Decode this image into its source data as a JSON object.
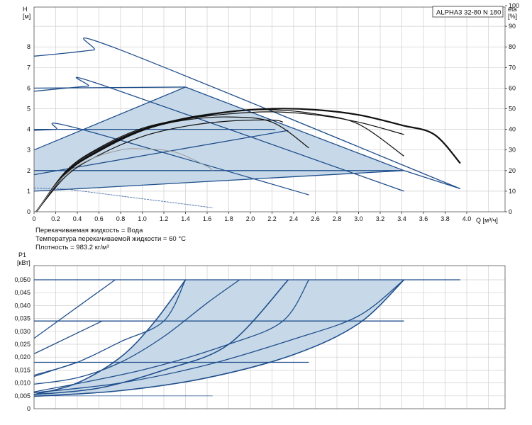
{
  "model_label": "ALPHA3 32-80 N 180",
  "notes": {
    "fluid": "Перекачиваемая жидкость = Вода",
    "temperature": "Температура перекачиваемой жидкости = 60 °C",
    "density": "Плотность = 983.2 кг/м³"
  },
  "chart_data": [
    {
      "type": "line",
      "title": "",
      "ylabel": "H",
      "yunit": "[м]",
      "y2label": "eta",
      "y2unit": "[%]",
      "xlabel": "Q [м³/ч]",
      "xlim": [
        0,
        4.4
      ],
      "ylim": [
        0,
        10
      ],
      "y2lim": [
        0,
        100
      ],
      "x_ticks": [
        "0",
        "0.2",
        "0.4",
        "0.6",
        "0.8",
        "1.0",
        "1.2",
        "1.4",
        "1.6",
        "1.8",
        "2.0",
        "2.2",
        "2.4",
        "2.6",
        "2.8",
        "3.0",
        "3.2",
        "3.4",
        "3.6",
        "3.8",
        "4.0"
      ],
      "y_ticks": [
        "0",
        "1",
        "2",
        "3",
        "4",
        "5",
        "6",
        "7",
        "8"
      ],
      "y2_ticks": [
        "0",
        "10",
        "20",
        "30",
        "40",
        "50",
        "60",
        "70",
        "80",
        "90",
        "100"
      ],
      "grid": true,
      "operating_area": [
        [
          0,
          1
        ],
        [
          3.42,
          2.0
        ],
        [
          1.4,
          6.05
        ],
        [
          0,
          3.0
        ]
      ],
      "series": [
        {
          "style": "blue",
          "points": [
            [
              0,
              7.55
            ],
            [
              0.3,
              7.7
            ],
            [
              0.55,
              7.85
            ],
            [
              0.75,
              7.95
            ],
            [
              3.94,
              1.12
            ]
          ]
        },
        {
          "style": "blue",
          "points": [
            [
              0,
              5.85
            ],
            [
              0.3,
              6.0
            ],
            [
              0.5,
              6.1
            ],
            [
              0.63,
              6.15
            ],
            [
              3.42,
              1.0
            ]
          ]
        },
        {
          "style": "blue",
          "points": [
            [
              0,
              3.95
            ],
            [
              0.2,
              4.0
            ],
            [
              0.38,
              4.08
            ],
            [
              2.54,
              0.82
            ]
          ]
        },
        {
          "style": "blue",
          "points": [
            [
              0,
              6.0
            ],
            [
              1.4,
              6.05
            ],
            [
              3.42,
              2.0
            ]
          ]
        },
        {
          "style": "blue",
          "points": [
            [
              0,
              4.0
            ],
            [
              2.23,
              4.0
            ]
          ]
        },
        {
          "style": "blue",
          "points": [
            [
              0,
              2.0
            ],
            [
              3.42,
              2.0
            ]
          ]
        },
        {
          "style": "blue",
          "points": [
            [
              0,
              1.0
            ],
            [
              3.42,
              2.0
            ]
          ]
        },
        {
          "style": "blue",
          "points": [
            [
              0,
              1.8
            ],
            [
              2.35,
              3.95
            ]
          ]
        },
        {
          "style": "blue",
          "points": [
            [
              0,
              3.0
            ],
            [
              1.4,
              6.05
            ]
          ]
        },
        {
          "style": "blue",
          "points": [
            [
              3.42,
              2.0
            ],
            [
              3.94,
              1.12
            ]
          ]
        },
        {
          "style": "thin",
          "points": [
            [
              0,
              1.15
            ],
            [
              0.3,
              1.1
            ],
            [
              1.65,
              0.2
            ]
          ]
        },
        {
          "style": "effbold",
          "points": [
            [
              0.02,
              0.0
            ],
            [
              0.3,
              1.9
            ],
            [
              0.6,
              2.95
            ],
            [
              1.0,
              3.95
            ],
            [
              1.4,
              4.5
            ],
            [
              1.8,
              4.85
            ],
            [
              2.2,
              5.0
            ],
            [
              2.6,
              4.95
            ],
            [
              3.0,
              4.7
            ],
            [
              3.4,
              4.2
            ],
            [
              3.7,
              3.75
            ],
            [
              3.94,
              2.35
            ]
          ]
        },
        {
          "style": "eff",
          "points": [
            [
              0.02,
              0.0
            ],
            [
              0.3,
              1.95
            ],
            [
              0.6,
              3.0
            ],
            [
              1.0,
              4.0
            ],
            [
              1.4,
              4.55
            ],
            [
              1.8,
              4.85
            ],
            [
              2.2,
              4.95
            ],
            [
              2.6,
              4.75
            ],
            [
              3.0,
              4.25
            ],
            [
              3.42,
              2.7
            ]
          ]
        },
        {
          "style": "eff",
          "points": [
            [
              0.02,
              0.0
            ],
            [
              0.3,
              2.0
            ],
            [
              0.6,
              3.05
            ],
            [
              1.0,
              4.0
            ],
            [
              1.4,
              4.45
            ],
            [
              1.8,
              4.6
            ],
            [
              2.2,
              4.35
            ],
            [
              2.54,
              3.1
            ]
          ]
        },
        {
          "style": "eff",
          "points": [
            [
              0.02,
              0.0
            ],
            [
              0.3,
              2.0
            ],
            [
              0.6,
              3.1
            ],
            [
              1.0,
              4.05
            ],
            [
              1.4,
              4.5
            ],
            [
              1.8,
              4.75
            ],
            [
              2.2,
              4.85
            ],
            [
              2.6,
              4.7
            ],
            [
              3.0,
              4.35
            ],
            [
              3.42,
              3.75
            ]
          ]
        },
        {
          "style": "eff",
          "points": [
            [
              0.02,
              0.0
            ],
            [
              0.3,
              1.75
            ],
            [
              0.6,
              2.75
            ],
            [
              1.0,
              3.65
            ],
            [
              1.4,
              4.15
            ],
            [
              1.8,
              4.4
            ],
            [
              2.2,
              4.45
            ],
            [
              2.3,
              4.35
            ]
          ]
        },
        {
          "style": "effgray",
          "points": [
            [
              0.02,
              0.0
            ],
            [
              0.25,
              1.6
            ],
            [
              0.5,
              2.5
            ],
            [
              0.8,
              3.0
            ],
            [
              1.0,
              3.05
            ],
            [
              1.3,
              2.9
            ],
            [
              1.6,
              2.2
            ],
            [
              1.65,
              2.0
            ]
          ]
        }
      ]
    },
    {
      "type": "line",
      "title": "",
      "ylabel": "P1",
      "yunit": "[кВт]",
      "xlim": [
        0,
        4.4
      ],
      "ylim": [
        0,
        0.055
      ],
      "y_ticks": [
        "0",
        "0,005",
        "0,010",
        "0,015",
        "0,020",
        "0,025",
        "0,030",
        "0,035",
        "0,040",
        "0,045",
        "0,050"
      ],
      "grid": true,
      "operating_area": [
        [
          0,
          0.0048
        ],
        [
          3.42,
          0.05
        ],
        [
          1.4,
          0.05
        ],
        [
          0,
          0.0133
        ]
      ],
      "series": [
        {
          "style": "blue",
          "points": [
            [
              0,
              0.05
            ],
            [
              3.94,
              0.05
            ]
          ]
        },
        {
          "style": "blue",
          "points": [
            [
              0,
              0.034
            ],
            [
              3.42,
              0.034
            ]
          ]
        },
        {
          "style": "blue",
          "points": [
            [
              0,
              0.018
            ],
            [
              2.54,
              0.018
            ]
          ]
        },
        {
          "style": "thin",
          "points": [
            [
              0,
              0.005
            ],
            [
              1.65,
              0.005
            ]
          ]
        },
        {
          "style": "blue",
          "points": [
            [
              0,
              0.0273
            ],
            [
              0.75,
              0.05
            ]
          ]
        },
        {
          "style": "blue",
          "points": [
            [
              0,
              0.0213
            ],
            [
              0.63,
              0.034
            ]
          ]
        },
        {
          "style": "blue",
          "points": [
            [
              0,
              0.0125
            ],
            [
              0.4,
              0.018
            ]
          ]
        },
        {
          "style": "blue2",
          "points": [
            [
              0,
              0.0055
            ],
            [
              0.4,
              0.01
            ],
            [
              0.8,
              0.02
            ],
            [
              1.1,
              0.033
            ],
            [
              1.4,
              0.05
            ]
          ]
        },
        {
          "style": "blue2",
          "points": [
            [
              0,
              0.0055
            ],
            [
              0.6,
              0.008
            ],
            [
              1.2,
              0.015
            ],
            [
              1.8,
              0.025
            ],
            [
              2.35,
              0.05
            ]
          ]
        },
        {
          "style": "blue2",
          "points": [
            [
              0,
              0.0048
            ],
            [
              0.8,
              0.007
            ],
            [
              1.6,
              0.012
            ],
            [
              2.4,
              0.021
            ],
            [
              3.0,
              0.033
            ],
            [
              3.42,
              0.05
            ]
          ]
        },
        {
          "style": "blue",
          "points": [
            [
              0,
              0.0095
            ],
            [
              0.4,
              0.012
            ],
            [
              0.8,
              0.018
            ],
            [
              1.2,
              0.028
            ],
            [
              1.6,
              0.041
            ],
            [
              1.9,
              0.05
            ]
          ]
        },
        {
          "style": "blue",
          "points": [
            [
              0,
              0.0062
            ],
            [
              0.8,
              0.01
            ],
            [
              1.6,
              0.017
            ],
            [
              2.4,
              0.027
            ],
            [
              3.0,
              0.036
            ],
            [
              3.42,
              0.05
            ]
          ]
        },
        {
          "style": "blue",
          "points": [
            [
              0,
              0.013
            ],
            [
              0.4,
              0.018
            ],
            [
              0.8,
              0.026
            ],
            [
              1.2,
              0.034
            ],
            [
              1.4,
              0.05
            ]
          ]
        },
        {
          "style": "blue",
          "points": [
            [
              0,
              0.0065
            ],
            [
              1.0,
              0.015
            ],
            [
              1.8,
              0.025
            ],
            [
              2.3,
              0.034
            ],
            [
              2.54,
              0.05
            ]
          ]
        }
      ]
    }
  ]
}
